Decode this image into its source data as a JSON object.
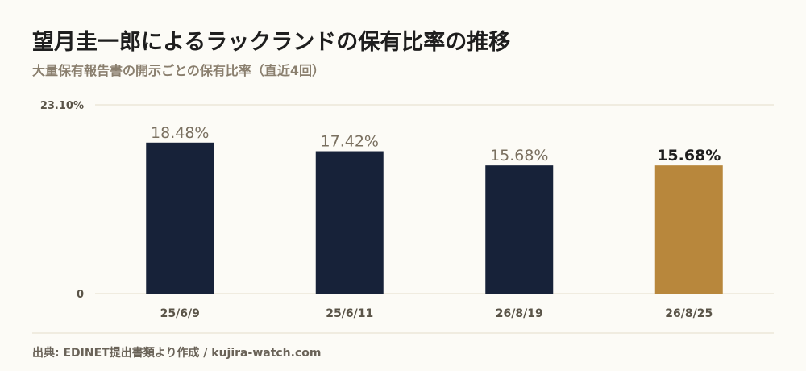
{
  "title": "望月圭一郎によるラックランドの保有比率の推移",
  "subtitle": "大量保有報告書の開示ごとの保有比率（直近4回）",
  "source": "出典: EDINET提出書類より作成 / kujira-watch.com",
  "colors": {
    "bar": "#172239",
    "highlight": "#b8873c",
    "grid": "#e3dccb",
    "label": "#7a7060",
    "highlight_label": "#1e1e1e",
    "tick": "#5a5448"
  },
  "chart_data": {
    "type": "bar",
    "categories": [
      "25/6/9",
      "25/6/11",
      "26/8/19",
      "26/8/25"
    ],
    "values": [
      18.48,
      17.42,
      15.68,
      15.68
    ],
    "data_labels": [
      "18.48%",
      "17.42%",
      "15.68%",
      "15.68%"
    ],
    "highlight_index": 3,
    "ylim": [
      0,
      23.1
    ],
    "yticks": [
      0,
      23.1
    ],
    "ytick_labels": [
      "0",
      "23.10%"
    ],
    "grid": true
  }
}
